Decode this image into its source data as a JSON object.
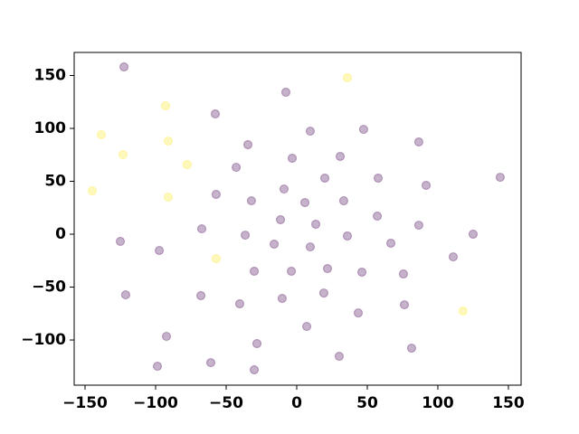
{
  "chart_data": {
    "type": "scatter",
    "series": [
      {
        "color": "#440154",
        "x": [
          -122.4,
          -7.7,
          -57.7,
          -34.6,
          9.6,
          47.4,
          86.5,
          -42.9,
          -3.2,
          30.8,
          19.9,
          57.7,
          144.2,
          91.7,
          -57.1,
          -32.1,
          -9.0,
          5.8,
          33.3,
          -11.5,
          13.5,
          57.1,
          86.5,
          125.0,
          -67.3,
          -36.5,
          -16.0,
          9.6,
          35.9,
          66.7,
          -125.0,
          -97.4,
          110.9,
          -30.1,
          -3.8,
          21.8,
          46.2,
          75.6,
          -121.2,
          -67.9,
          -40.4,
          -10.3,
          19.2,
          43.6,
          76.3,
          7.1,
          -92.3,
          -28.2,
          81.4,
          -98.7,
          -60.9,
          30.1,
          -30.1
        ],
        "values": [
          158.1,
          134.2,
          113.7,
          84.6,
          97.4,
          99.1,
          87.2,
          63.2,
          71.8,
          73.5,
          53.0,
          53.0,
          53.8,
          46.2,
          37.6,
          31.6,
          42.7,
          29.9,
          31.6,
          13.7,
          9.4,
          17.1,
          8.5,
          0,
          5.1,
          -0.9,
          -9.4,
          -12.0,
          -1.7,
          -8.5,
          -6.8,
          -15.4,
          -21.4,
          -35.0,
          -35.0,
          -32.5,
          -35.9,
          -37.6,
          -57.3,
          -58.1,
          -65.8,
          -60.7,
          -55.6,
          -74.4,
          -66.7,
          -87.2,
          -96.6,
          -103.4,
          -107.7,
          -124.8,
          -121.4,
          -115.4,
          -128.2
        ]
      },
      {
        "color": "#fde725",
        "x": [
          35.9,
          -92.9,
          -138.5,
          -91.0,
          -123.1,
          -77.6,
          -144.9,
          -91.0,
          -57.1,
          117.9
        ],
        "values": [
          147.9,
          121.4,
          94.0,
          88.0,
          75.2,
          65.8,
          41.0,
          35.0,
          -23.1,
          -72.6
        ]
      }
    ],
    "xlim": [
      -157.7,
      159.0
    ],
    "ylim": [
      -142.7,
      171.8
    ],
    "xticks": [
      {
        "value": -150,
        "label": "−150"
      },
      {
        "value": -100,
        "label": "−100"
      },
      {
        "value": -50,
        "label": "−50"
      },
      0,
      50,
      100,
      150
    ],
    "yticks": [
      {
        "value": -100,
        "label": "−100"
      },
      {
        "value": -50,
        "label": "−50"
      },
      0,
      50,
      100,
      150
    ]
  }
}
